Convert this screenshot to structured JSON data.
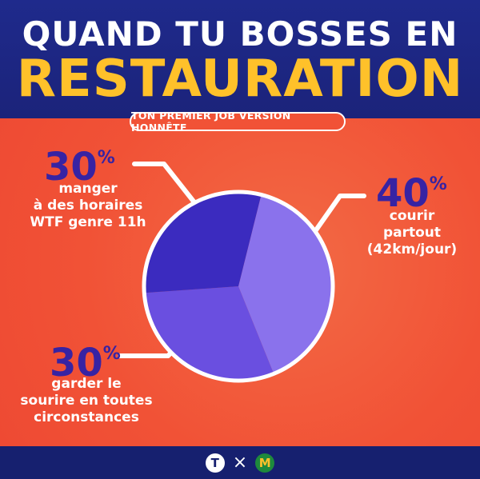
{
  "header": {
    "title_line1": "QUAND TU BOSSES EN",
    "title_line2": "RESTAURATION",
    "subtitle": "TON PREMIER JOB VERSION HONNÊTE"
  },
  "colors": {
    "header_bg": "#1f2a8c",
    "title_accent": "#ffc12a",
    "background": "#f15236",
    "percent_text": "#3723a3",
    "slices": [
      "#8a72ec",
      "#6a4fe0",
      "#3b2bbf"
    ]
  },
  "chart_data": {
    "type": "pie",
    "slices": [
      {
        "label": "courir partout (42km/jour)",
        "value": 40,
        "color": "#8a72ec"
      },
      {
        "label": "garder le sourire en toutes circonstances",
        "value": 30,
        "color": "#6a4fe0"
      },
      {
        "label": "manger à des horaires WTF genre 11h",
        "value": 30,
        "color": "#3b2bbf"
      }
    ]
  },
  "labels": {
    "left_top": {
      "percent": "30",
      "sign": "%",
      "lines": [
        "manger",
        "à des horaires",
        "WTF genre 11h"
      ]
    },
    "right": {
      "percent": "40",
      "sign": "%",
      "lines": [
        "courir",
        "partout",
        "(42km/jour)"
      ]
    },
    "left_bottom": {
      "percent": "30",
      "sign": "%",
      "lines": [
        "garder le",
        "sourire en toutes",
        "circonstances"
      ]
    }
  },
  "footer": {
    "logo_left": "T",
    "separator": "×",
    "logo_right": "M"
  }
}
